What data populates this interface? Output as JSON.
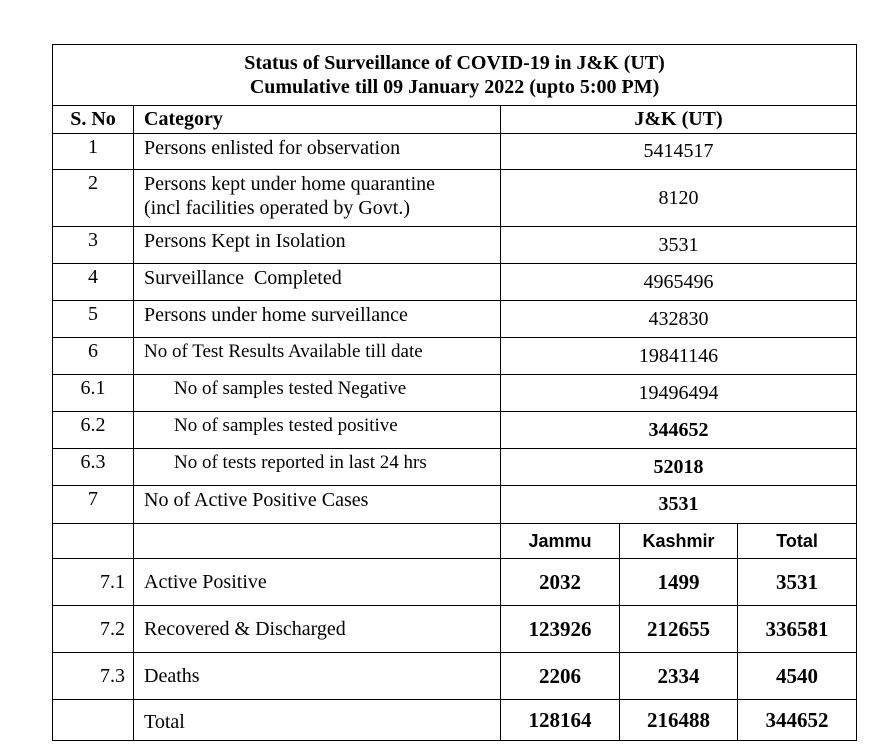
{
  "title": {
    "line1": "Status of Surveillance of COVID-19 in J&K (UT)",
    "line2": "Cumulative till 09 January 2022 (upto 5:00 PM)"
  },
  "header": {
    "sno": "S. No",
    "category": "Category",
    "region": "J&K (UT)"
  },
  "rows": [
    {
      "sno": "1",
      "category": "Persons enlisted for observation",
      "value": "5414517"
    },
    {
      "sno": "2",
      "category_line1": "Persons kept under home quarantine",
      "category_line2": "(incl facilities operated by Govt.)",
      "value": "8120"
    },
    {
      "sno": "3",
      "category": "Persons Kept in Isolation",
      "value": "3531"
    },
    {
      "sno": "4",
      "category": "Surveillance  Completed",
      "value": "4965496"
    },
    {
      "sno": "5",
      "category": "Persons under home surveillance",
      "value": "432830"
    },
    {
      "sno": "6",
      "category": "No of Test Results Available till date",
      "value": "19841146"
    },
    {
      "sno": "6.1",
      "category": "No of samples tested Negative",
      "value": "19496494"
    },
    {
      "sno": "6.2",
      "category": "No of samples tested positive",
      "value": "344652"
    },
    {
      "sno": "6.3",
      "category": "No of tests reported in last 24 hrs",
      "value": "52018"
    },
    {
      "sno": "7",
      "category": "No of Active Positive Cases",
      "value": "3531"
    }
  ],
  "split_header": {
    "jammu": "Jammu",
    "kashmir": "Kashmir",
    "total": "Total"
  },
  "split_rows": [
    {
      "sno": "7.1",
      "category": "Active Positive",
      "jammu": "2032",
      "kashmir": "1499",
      "total": "3531"
    },
    {
      "sno": "7.2",
      "category": "Recovered & Discharged",
      "jammu": "123926",
      "kashmir": "212655",
      "total": "336581"
    },
    {
      "sno": "7.3",
      "category": "Deaths",
      "jammu": "2206",
      "kashmir": "2334",
      "total": "4540"
    }
  ],
  "total_row": {
    "label": "Total",
    "jammu": "128164",
    "kashmir": "216488",
    "total": "344652"
  }
}
